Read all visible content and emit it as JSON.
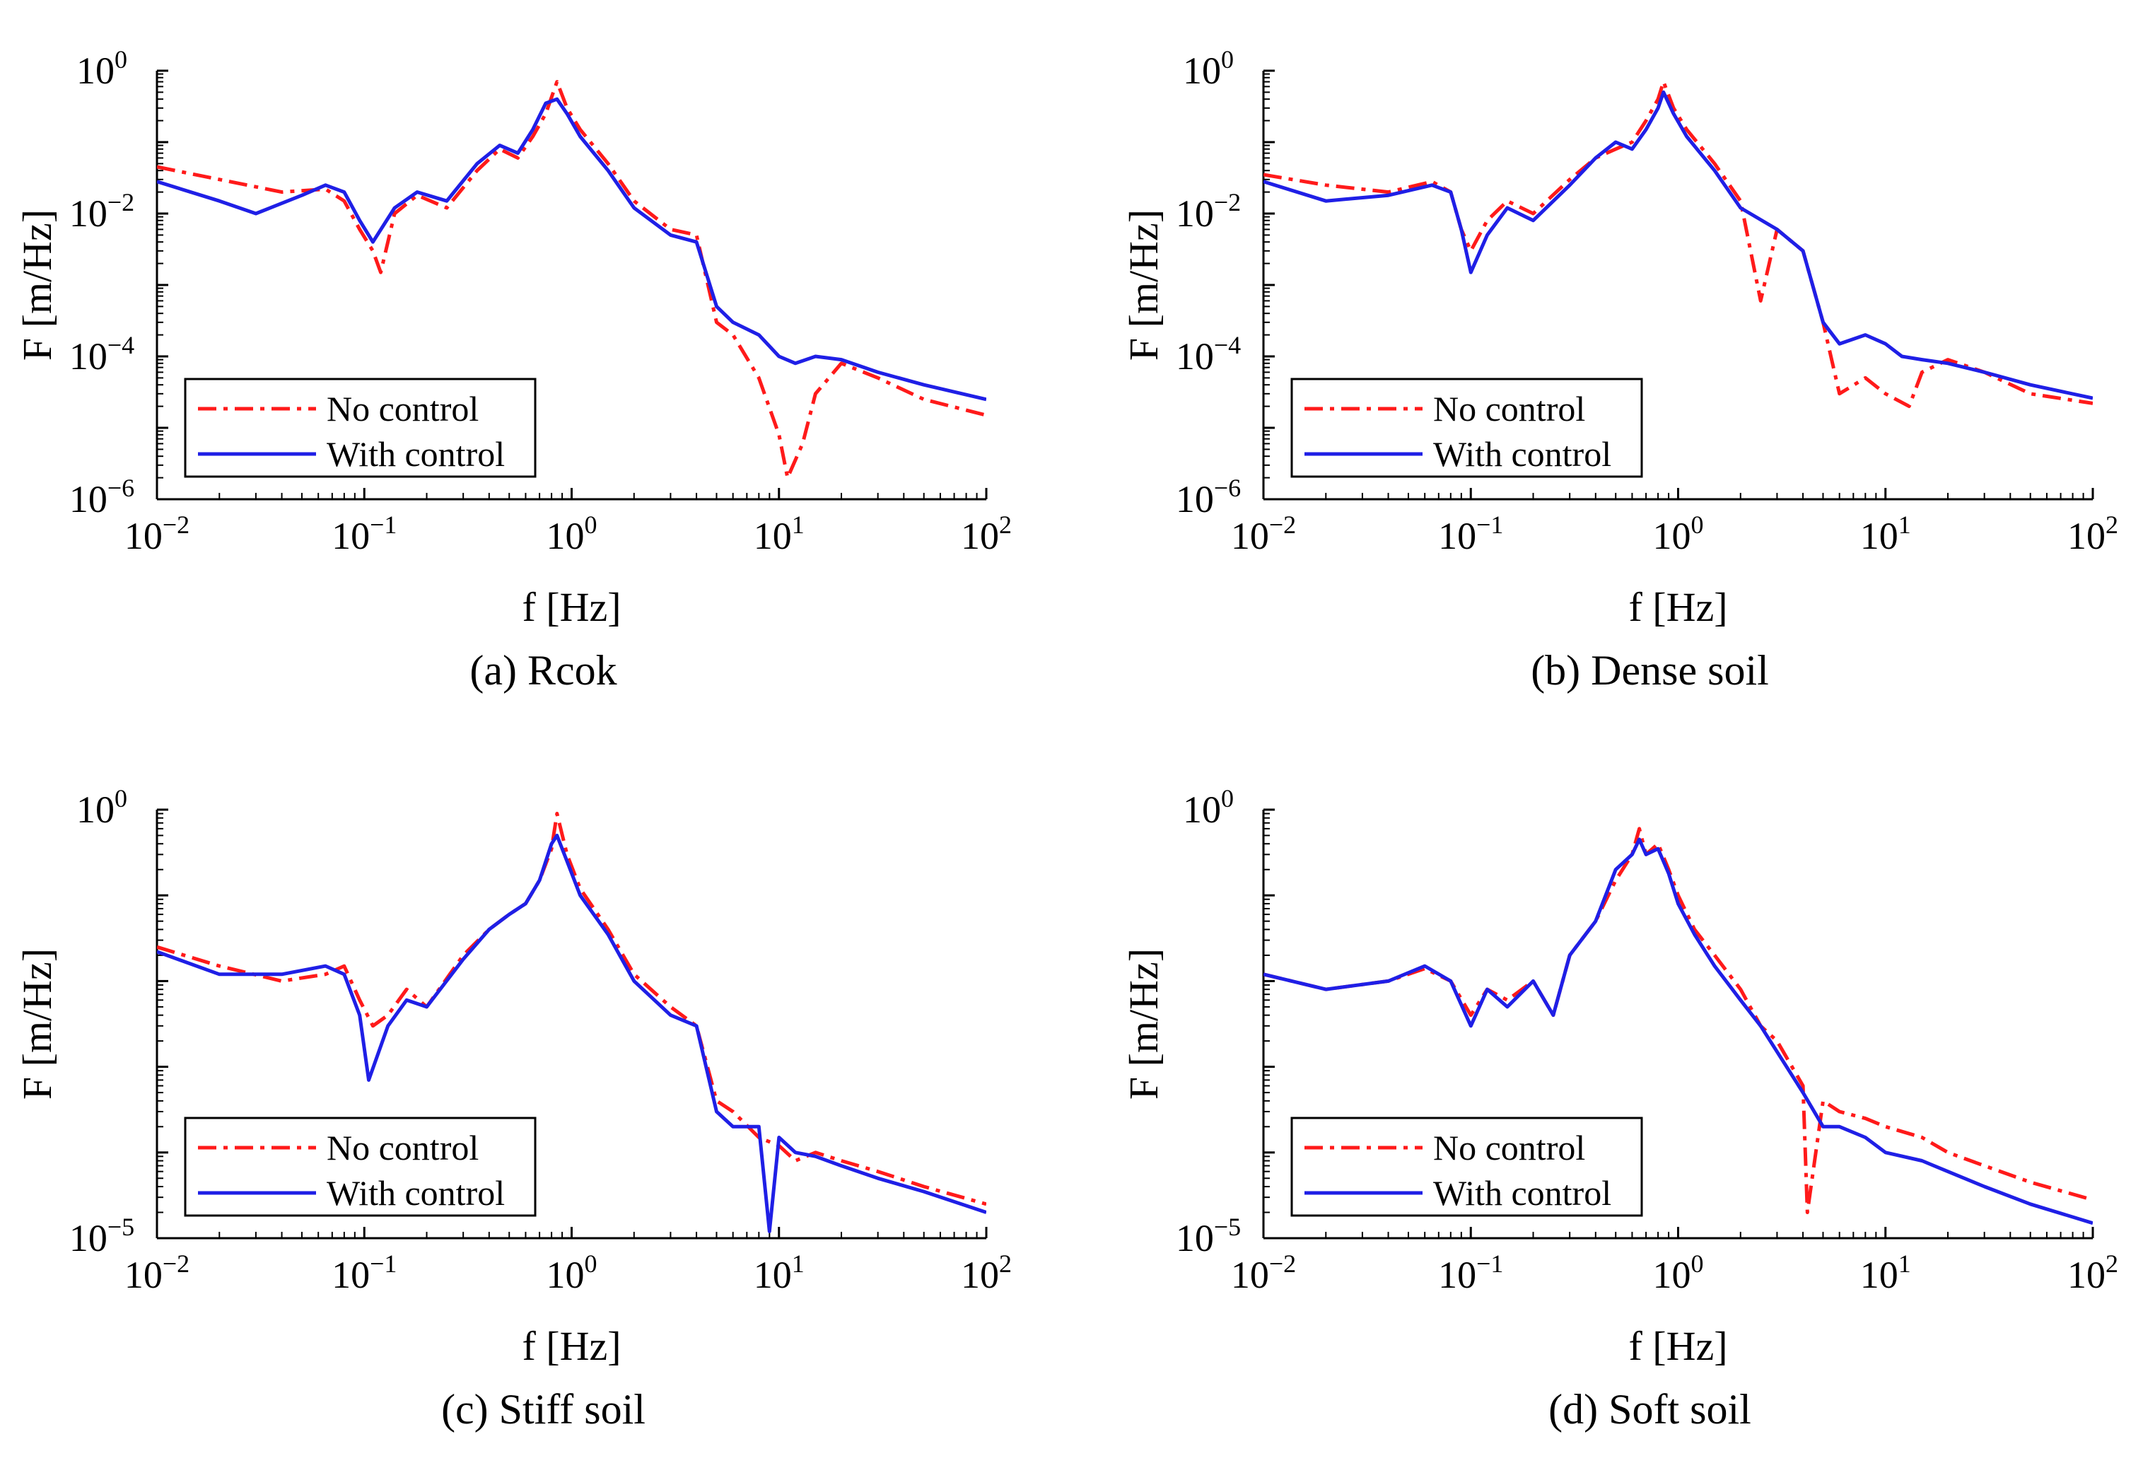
{
  "figure": {
    "colors": {
      "no_control": "#ff1a1a",
      "with_control": "#1f1fe6"
    }
  },
  "chart_data": [
    {
      "type": "line",
      "caption": "(a) Rcok",
      "xlabel": "f [Hz]",
      "ylabel": "F [m/Hz]",
      "xscale": "log",
      "yscale": "log",
      "xlim": [
        0.01,
        100
      ],
      "ylim": [
        1e-06,
        1
      ],
      "xticks": [
        {
          "base": "10",
          "exp": "−2",
          "value": 0.01
        },
        {
          "base": "10",
          "exp": "−1",
          "value": 0.1
        },
        {
          "base": "10",
          "exp": "0",
          "value": 1
        },
        {
          "base": "10",
          "exp": "1",
          "value": 10
        },
        {
          "base": "10",
          "exp": "2",
          "value": 100
        }
      ],
      "yticks": [
        {
          "base": "10",
          "exp": "−6",
          "value": 1e-06
        },
        {
          "base": "10",
          "exp": "−4",
          "value": 0.0001
        },
        {
          "base": "10",
          "exp": "−2",
          "value": 0.01
        },
        {
          "base": "10",
          "exp": "0",
          "value": 1
        }
      ],
      "legend": {
        "position": "lower-left",
        "entries": [
          "No control",
          "With control"
        ]
      },
      "series": [
        {
          "name": "No control",
          "style": "dashdot",
          "x": [
            0.01,
            0.02,
            0.04,
            0.065,
            0.08,
            0.095,
            0.11,
            0.12,
            0.14,
            0.18,
            0.25,
            0.35,
            0.45,
            0.55,
            0.65,
            0.75,
            0.85,
            0.95,
            1.1,
            1.5,
            2,
            3,
            4,
            5,
            6,
            8,
            10,
            11,
            13,
            15,
            20,
            30,
            50,
            100
          ],
          "y": [
            0.045,
            0.03,
            0.02,
            0.022,
            0.015,
            0.006,
            0.003,
            0.0015,
            0.01,
            0.018,
            0.012,
            0.04,
            0.08,
            0.06,
            0.12,
            0.25,
            0.7,
            0.3,
            0.15,
            0.05,
            0.015,
            0.006,
            0.005,
            0.0003,
            0.0002,
            5e-05,
            8e-06,
            2e-06,
            6e-06,
            3e-05,
            8e-05,
            5e-05,
            2.5e-05,
            1.5e-05
          ]
        },
        {
          "name": "With control",
          "style": "solid",
          "x": [
            0.01,
            0.02,
            0.03,
            0.05,
            0.065,
            0.08,
            0.095,
            0.11,
            0.14,
            0.18,
            0.25,
            0.35,
            0.45,
            0.55,
            0.65,
            0.75,
            0.85,
            0.95,
            1.1,
            1.5,
            2,
            3,
            4,
            5,
            6,
            8,
            10,
            12,
            15,
            20,
            30,
            50,
            100
          ],
          "y": [
            0.028,
            0.015,
            0.01,
            0.018,
            0.025,
            0.02,
            0.008,
            0.004,
            0.012,
            0.02,
            0.015,
            0.05,
            0.09,
            0.07,
            0.15,
            0.35,
            0.4,
            0.25,
            0.12,
            0.04,
            0.012,
            0.005,
            0.004,
            0.0005,
            0.0003,
            0.0002,
            0.0001,
            8e-05,
            0.0001,
            9e-05,
            6e-05,
            4e-05,
            2.5e-05
          ]
        }
      ]
    },
    {
      "type": "line",
      "caption": "(b) Dense soil",
      "xlabel": "f [Hz]",
      "ylabel": "F [m/Hz]",
      "xscale": "log",
      "yscale": "log",
      "xlim": [
        0.01,
        100
      ],
      "ylim": [
        1e-06,
        1
      ],
      "xticks": [
        {
          "base": "10",
          "exp": "−2",
          "value": 0.01
        },
        {
          "base": "10",
          "exp": "−1",
          "value": 0.1
        },
        {
          "base": "10",
          "exp": "0",
          "value": 1
        },
        {
          "base": "10",
          "exp": "1",
          "value": 10
        },
        {
          "base": "10",
          "exp": "2",
          "value": 100
        }
      ],
      "yticks": [
        {
          "base": "10",
          "exp": "−6",
          "value": 1e-06
        },
        {
          "base": "10",
          "exp": "−4",
          "value": 0.0001
        },
        {
          "base": "10",
          "exp": "−2",
          "value": 0.01
        },
        {
          "base": "10",
          "exp": "0",
          "value": 1
        }
      ],
      "legend": {
        "position": "lower-left",
        "entries": [
          "No control",
          "With control"
        ]
      },
      "series": [
        {
          "name": "No control",
          "style": "dashdot",
          "x": [
            0.01,
            0.02,
            0.04,
            0.065,
            0.08,
            0.09,
            0.1,
            0.12,
            0.15,
            0.2,
            0.3,
            0.4,
            0.5,
            0.6,
            0.7,
            0.8,
            0.85,
            0.95,
            1.1,
            1.5,
            2,
            2.5,
            3,
            4,
            5,
            6,
            8,
            10,
            13,
            15,
            20,
            30,
            50,
            100
          ],
          "y": [
            0.035,
            0.025,
            0.02,
            0.028,
            0.02,
            0.006,
            0.003,
            0.008,
            0.015,
            0.01,
            0.03,
            0.06,
            0.08,
            0.1,
            0.2,
            0.4,
            0.7,
            0.3,
            0.15,
            0.05,
            0.015,
            0.0006,
            0.006,
            0.003,
            0.0003,
            3e-05,
            5e-05,
            3e-05,
            2e-05,
            6e-05,
            9e-05,
            6e-05,
            3e-05,
            2.2e-05
          ]
        },
        {
          "name": "With control",
          "style": "solid",
          "x": [
            0.01,
            0.02,
            0.04,
            0.065,
            0.08,
            0.09,
            0.1,
            0.12,
            0.15,
            0.2,
            0.3,
            0.4,
            0.5,
            0.6,
            0.7,
            0.8,
            0.85,
            0.95,
            1.1,
            1.5,
            2,
            3,
            4,
            5,
            6,
            8,
            10,
            12,
            15,
            20,
            30,
            50,
            100
          ],
          "y": [
            0.028,
            0.015,
            0.018,
            0.025,
            0.02,
            0.006,
            0.0015,
            0.005,
            0.012,
            0.008,
            0.025,
            0.06,
            0.1,
            0.08,
            0.15,
            0.3,
            0.5,
            0.25,
            0.12,
            0.04,
            0.012,
            0.006,
            0.003,
            0.0003,
            0.00015,
            0.0002,
            0.00015,
            0.0001,
            9e-05,
            8e-05,
            6e-05,
            4e-05,
            2.6e-05
          ]
        }
      ]
    },
    {
      "type": "line",
      "caption": "(c) Stiff soil",
      "xlabel": "f [Hz]",
      "ylabel": "F [m/Hz]",
      "xscale": "log",
      "yscale": "log",
      "xlim": [
        0.01,
        100
      ],
      "ylim": [
        1e-05,
        1
      ],
      "xticks": [
        {
          "base": "10",
          "exp": "−2",
          "value": 0.01
        },
        {
          "base": "10",
          "exp": "−1",
          "value": 0.1
        },
        {
          "base": "10",
          "exp": "0",
          "value": 1
        },
        {
          "base": "10",
          "exp": "1",
          "value": 10
        },
        {
          "base": "10",
          "exp": "2",
          "value": 100
        }
      ],
      "yticks": [
        {
          "base": "10",
          "exp": "−5",
          "value": 1e-05
        },
        {
          "base": "10",
          "exp": "0",
          "value": 1
        }
      ],
      "legend": {
        "position": "lower-left",
        "entries": [
          "No control",
          "With control"
        ]
      },
      "series": [
        {
          "name": "No control",
          "style": "dashdot",
          "x": [
            0.01,
            0.02,
            0.04,
            0.065,
            0.08,
            0.095,
            0.11,
            0.13,
            0.16,
            0.2,
            0.3,
            0.4,
            0.5,
            0.6,
            0.7,
            0.8,
            0.85,
            0.95,
            1.1,
            1.5,
            2,
            3,
            4,
            5,
            6,
            8,
            10,
            12,
            15,
            20,
            30,
            50,
            100
          ],
          "y": [
            0.025,
            0.015,
            0.01,
            0.012,
            0.015,
            0.006,
            0.003,
            0.004,
            0.008,
            0.005,
            0.02,
            0.04,
            0.06,
            0.08,
            0.15,
            0.35,
            0.9,
            0.3,
            0.12,
            0.04,
            0.012,
            0.005,
            0.003,
            0.0004,
            0.0003,
            0.00015,
            0.00012,
            8e-05,
            0.0001,
            8e-05,
            6e-05,
            4e-05,
            2.5e-05
          ]
        },
        {
          "name": "With control",
          "style": "solid",
          "x": [
            0.01,
            0.02,
            0.04,
            0.065,
            0.08,
            0.095,
            0.105,
            0.13,
            0.16,
            0.2,
            0.3,
            0.4,
            0.5,
            0.6,
            0.7,
            0.8,
            0.85,
            0.95,
            1.1,
            1.5,
            2,
            3,
            4,
            5,
            6,
            8,
            9,
            10,
            12,
            15,
            20,
            30,
            50,
            100
          ],
          "y": [
            0.022,
            0.012,
            0.012,
            0.015,
            0.012,
            0.004,
            0.0007,
            0.003,
            0.006,
            0.005,
            0.018,
            0.04,
            0.06,
            0.08,
            0.15,
            0.4,
            0.5,
            0.25,
            0.1,
            0.035,
            0.01,
            0.004,
            0.003,
            0.0003,
            0.0002,
            0.0002,
            1.2e-05,
            0.00015,
            0.0001,
            9e-05,
            7e-05,
            5e-05,
            3.5e-05,
            2e-05
          ]
        }
      ]
    },
    {
      "type": "line",
      "caption": "(d) Soft soil",
      "xlabel": "f [Hz]",
      "ylabel": "F [m/Hz]",
      "xscale": "log",
      "yscale": "log",
      "xlim": [
        0.01,
        100
      ],
      "ylim": [
        1e-05,
        1
      ],
      "xticks": [
        {
          "base": "10",
          "exp": "−2",
          "value": 0.01
        },
        {
          "base": "10",
          "exp": "−1",
          "value": 0.1
        },
        {
          "base": "10",
          "exp": "0",
          "value": 1
        },
        {
          "base": "10",
          "exp": "1",
          "value": 10
        },
        {
          "base": "10",
          "exp": "2",
          "value": 100
        }
      ],
      "yticks": [
        {
          "base": "10",
          "exp": "−5",
          "value": 1e-05
        },
        {
          "base": "10",
          "exp": "0",
          "value": 1
        }
      ],
      "legend": {
        "position": "lower-left",
        "entries": [
          "No control",
          "With control"
        ]
      },
      "series": [
        {
          "name": "No control",
          "style": "dashdot",
          "x": [
            0.01,
            0.02,
            0.04,
            0.06,
            0.08,
            0.1,
            0.12,
            0.15,
            0.2,
            0.25,
            0.3,
            0.4,
            0.5,
            0.6,
            0.65,
            0.7,
            0.8,
            0.9,
            1.0,
            1.2,
            1.5,
            2,
            2.5,
            3,
            4,
            4.2,
            5,
            6,
            8,
            10,
            15,
            20,
            30,
            50,
            100
          ],
          "y": [
            0.012,
            0.008,
            0.01,
            0.014,
            0.01,
            0.004,
            0.008,
            0.006,
            0.01,
            0.004,
            0.02,
            0.05,
            0.15,
            0.3,
            0.6,
            0.3,
            0.4,
            0.2,
            0.1,
            0.04,
            0.02,
            0.008,
            0.003,
            0.002,
            0.0006,
            2e-05,
            0.0004,
            0.0003,
            0.00025,
            0.0002,
            0.00015,
            0.0001,
            7e-05,
            4.5e-05,
            2.8e-05
          ]
        },
        {
          "name": "With control",
          "style": "solid",
          "x": [
            0.01,
            0.02,
            0.04,
            0.06,
            0.08,
            0.1,
            0.12,
            0.15,
            0.2,
            0.25,
            0.3,
            0.4,
            0.5,
            0.6,
            0.65,
            0.7,
            0.8,
            0.9,
            1.0,
            1.2,
            1.5,
            2,
            2.5,
            3,
            4,
            5,
            6,
            8,
            10,
            15,
            20,
            30,
            50,
            100
          ],
          "y": [
            0.012,
            0.008,
            0.01,
            0.015,
            0.01,
            0.003,
            0.008,
            0.005,
            0.01,
            0.004,
            0.02,
            0.05,
            0.2,
            0.3,
            0.45,
            0.3,
            0.35,
            0.18,
            0.08,
            0.035,
            0.015,
            0.006,
            0.003,
            0.0015,
            0.0005,
            0.0002,
            0.0002,
            0.00015,
            0.0001,
            8e-05,
            6e-05,
            4e-05,
            2.5e-05,
            1.5e-05
          ]
        }
      ]
    }
  ]
}
